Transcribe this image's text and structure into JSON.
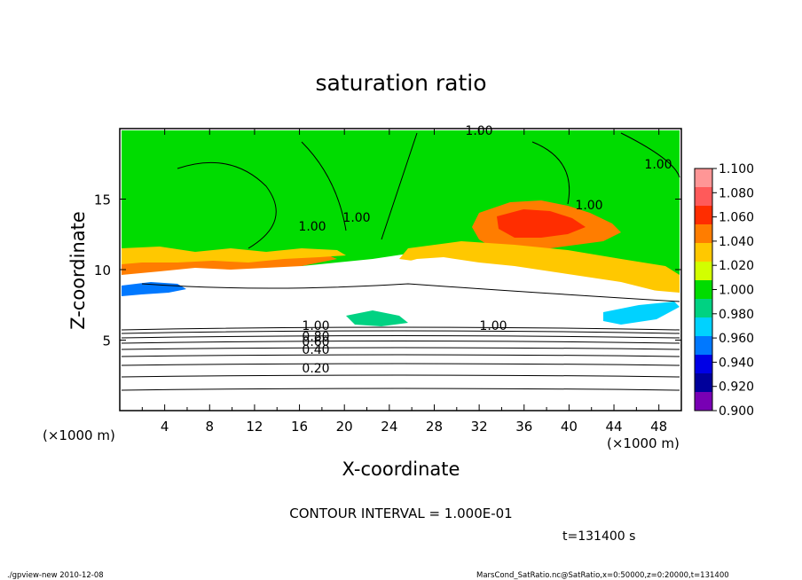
{
  "chart_data": {
    "type": "heatmap",
    "title": "saturation ratio",
    "xlabel": "X-coordinate",
    "ylabel": "Z-coordinate",
    "x_unit": "(×1000 m)",
    "y_unit": "(×1000 m)",
    "xlim": [
      0,
      50
    ],
    "ylim": [
      0,
      20
    ],
    "xticks": [
      "4",
      "8",
      "12",
      "16",
      "20",
      "24",
      "28",
      "32",
      "36",
      "40",
      "44",
      "48"
    ],
    "yticks": [
      "5",
      "10",
      "15"
    ],
    "contour_interval_text": "CONTOUR INTERVAL = 1.000E-01",
    "time_text": "t=131400 s",
    "contour_labels": [
      "1.00",
      "1.00",
      "1.00",
      "1.00",
      "1.00",
      "1.00",
      "1.00",
      "0.80",
      "0.60",
      "0.40",
      "0.20"
    ],
    "colorbar": {
      "ticks": [
        "1.100",
        "1.080",
        "1.060",
        "1.040",
        "1.020",
        "1.000",
        "0.980",
        "0.960",
        "0.940",
        "0.920",
        "0.900"
      ],
      "colors": [
        "#ff9696",
        "#ff5a5a",
        "#ff2d00",
        "#ff7d00",
        "#ffc800",
        "#d2ff00",
        "#00dc00",
        "#00d282",
        "#00d2ff",
        "#0078ff",
        "#0000e6",
        "#00009b",
        "#7800b4"
      ]
    }
  },
  "footer": {
    "left": "./gpview-new   2010-12-08",
    "right": "MarsCond_SatRatio.nc@SatRatio,x=0:50000,z=0:20000,t=131400"
  }
}
